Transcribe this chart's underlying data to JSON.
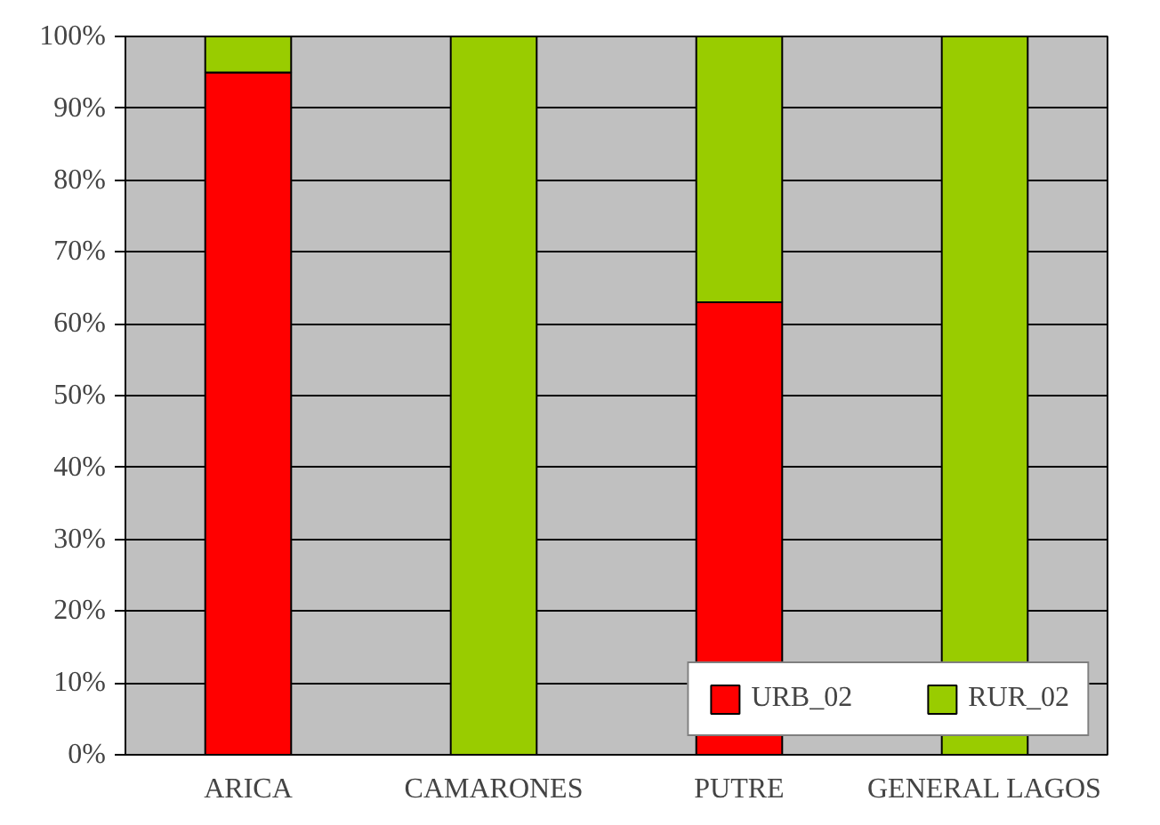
{
  "chart_data": {
    "type": "bar",
    "stacked": true,
    "categories": [
      "ARICA",
      "CAMARONES",
      "PUTRE",
      "GENERAL LAGOS"
    ],
    "series": [
      {
        "name": "URB_02",
        "color": "#ff0000",
        "values": [
          95,
          0,
          63,
          0
        ]
      },
      {
        "name": "RUR_02",
        "color": "#99cc00",
        "values": [
          5,
          100,
          37,
          100
        ]
      }
    ],
    "ylim": [
      0,
      100
    ],
    "yticks": [
      {
        "value": 0,
        "label": "0%"
      },
      {
        "value": 10,
        "label": "10%"
      },
      {
        "value": 20,
        "label": "20%"
      },
      {
        "value": 30,
        "label": "30%"
      },
      {
        "value": 40,
        "label": "40%"
      },
      {
        "value": 50,
        "label": "50%"
      },
      {
        "value": 60,
        "label": "60%"
      },
      {
        "value": 70,
        "label": "70%"
      },
      {
        "value": 80,
        "label": "80%"
      },
      {
        "value": 90,
        "label": "90%"
      },
      {
        "value": 100,
        "label": "100%"
      }
    ],
    "grid": "y",
    "legend": "bottom right"
  }
}
